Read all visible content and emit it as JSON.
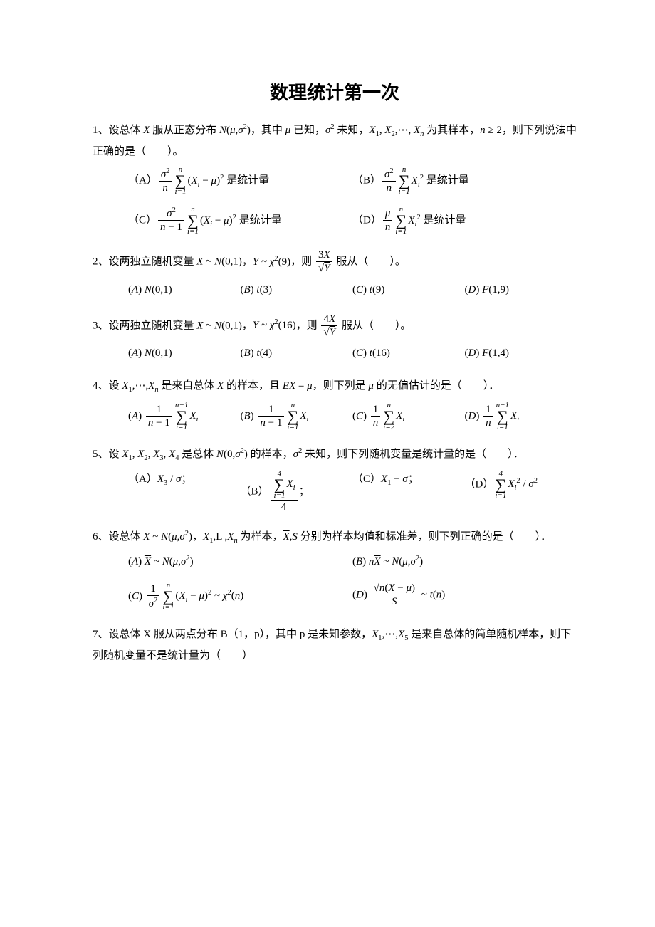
{
  "title": "数理统计第一次",
  "questions": [
    {
      "num": "1、",
      "stem_html": "设总体 <span class='math'>X</span> 服从正态分布 <span class='math'>N<span class='mn'>(</span>μ<span class='mn'>,</span>σ<sup class='mn'>2</sup><span class='mn'>)</span></span>，其中 <span class='math'>μ</span> 已知，<span class='math'>σ<sup class='mn'>2</sup></span> 未知，<span class='math'>X<sub class='mn'>1</sub><span class='mn'>,</span> X<sub class='mn'>2</sub><span class='mn'>,⋯,</span> X<sub>n</sub></span> 为其样本，<span class='math'>n <span class='mn'>≥ 2</span></span>，则下列说法中正确的是（&emsp;&emsp;）。",
      "opts_layout": "row2",
      "options": [
        "（A）<span class='frac'><span class='n'><span class='math'>σ</span><sup>2</sup></span><span class='d'><span class='math'>n</span></span></span><span class='sum'><span class='top'>n</span><span class='sym'>∑</span><span class='bot'>i=1</span></span><span class='math'><span class='mn'>(</span>X<sub>i</sub> <span class='mn'>−</span> μ<span class='mn'>)</span><sup class='mn'>2</sup></span> 是统计量",
        "（B）<span class='frac'><span class='n'><span class='math'>σ</span><sup>2</sup></span><span class='d'><span class='math'>n</span></span></span><span class='sum'><span class='top'>n</span><span class='sym'>∑</span><span class='bot'>i=1</span></span><span class='math'>X<sub>i</sub><sup class='mn'>2</sup></span> 是统计量",
        "（C）<span class='frac'><span class='n'><span class='math'>σ</span><sup>2</sup></span><span class='d'><span class='math'>n</span> − 1</span></span><span class='sum'><span class='top'>n</span><span class='sym'>∑</span><span class='bot'>i=1</span></span><span class='math'><span class='mn'>(</span>X<sub>i</sub> <span class='mn'>−</span> μ<span class='mn'>)</span><sup class='mn'>2</sup></span> 是统计量",
        "（D）<span class='frac'><span class='n'><span class='math'>μ</span></span><span class='d'><span class='math'>n</span></span></span><span class='sum'><span class='top'>n</span><span class='sym'>∑</span><span class='bot'>i=1</span></span><span class='math'>X<sub>i</sub><sup class='mn'>2</sup></span> 是统计量"
      ]
    },
    {
      "num": "2、",
      "stem_html": "设两独立随机变量 <span class='math'>X <span class='mn'>~</span> N<span class='mn'>(0,1)</span></span>，<span class='math'>Y <span class='mn'>~</span> χ<sup class='mn'>2</sup><span class='mn'>(9)</span></span>，则 <span class='frac'><span class='n'>3<span class='math'>X</span></span><span class='d'>√<span class='ov'><span class='math'>Y</span></span></span></span> 服从（&emsp;&emsp;）。",
      "opts_layout": "row4",
      "options": [
        "(<span class='math'>A</span>) <span class='math'>N</span>(0,1)",
        "(<span class='math'>B</span>) <span class='math'>t</span>(3)",
        "(<span class='math'>C</span>) <span class='math'>t</span>(9)",
        "(<span class='math'>D</span>) <span class='math'>F</span>(1,9)"
      ]
    },
    {
      "num": "3、",
      "stem_html": "设两独立随机变量 <span class='math'>X <span class='mn'>~</span> N<span class='mn'>(0,1)</span></span>，<span class='math'>Y <span class='mn'>~</span> χ<sup class='mn'>2</sup><span class='mn'>(16)</span></span>，则 <span class='frac'><span class='n'>4<span class='math'>X</span></span><span class='d'>√<span class='ov'><span class='math'>Y</span></span></span></span> 服从（&emsp;&emsp;）。",
      "opts_layout": "row4",
      "options": [
        "(<span class='math'>A</span>) <span class='math'>N</span>(0,1)",
        "(<span class='math'>B</span>) <span class='math'>t</span>(4)",
        "(<span class='math'>C</span>) <span class='math'>t</span>(16)",
        "(<span class='math'>D</span>) <span class='math'>F</span>(1,4)"
      ]
    },
    {
      "num": "4、",
      "stem_html": "设 <span class='math'>X<sub class='mn'>1</sub><span class='mn'>,⋯,</span>X<sub>n</sub></span> 是来自总体 <span class='math'>X</span> 的样本，且 <span class='math'>EX <span class='mn'>=</span> μ</span>，则下列是 <span class='math'>μ</span> 的无偏估计的是（&emsp;&emsp;）．",
      "opts_layout": "row4",
      "options": [
        "(<span class='math'>A</span>) <span class='frac'><span class='n'>1</span><span class='d'><span class='math'>n</span> − 1</span></span><span class='sum'><span class='top'>n−1</span><span class='sym'>∑</span><span class='bot'>i=1</span></span><span class='math'>X<sub>i</sub></span>",
        "(<span class='math'>B</span>) <span class='frac'><span class='n'>1</span><span class='d'><span class='math'>n</span> − 1</span></span><span class='sum'><span class='top'>n</span><span class='sym'>∑</span><span class='bot'>i=1</span></span><span class='math'>X<sub>i</sub></span>",
        "(<span class='math'>C</span>) <span class='frac'><span class='n'>1</span><span class='d'><span class='math'>n</span></span></span><span class='sum'><span class='top'>n</span><span class='sym'>∑</span><span class='bot'>i=2</span></span><span class='math'>X<sub>i</sub></span>",
        "(<span class='math'>D</span>) <span class='frac'><span class='n'>1</span><span class='d'><span class='math'>n</span></span></span><span class='sum'><span class='top'>n−1</span><span class='sym'>∑</span><span class='bot'>i=1</span></span><span class='math'>X<sub>i</sub></span>"
      ]
    },
    {
      "num": "5、",
      "stem_html": "设 <span class='math'>X<sub class='mn'>1</sub><span class='mn'>,</span> X<sub class='mn'>2</sub><span class='mn'>,</span> X<sub class='mn'>3</sub><span class='mn'>,</span> X<sub class='mn'>4</sub></span> 是总体 <span class='math'>N<span class='mn'>(0,</span>σ<sup class='mn'>2</sup><span class='mn'>)</span></span> 的样本，<span class='math'>σ<sup class='mn'>2</sup></span> 未知，则下列随机变量是统计量的是（&emsp;&emsp;）．",
      "opts_layout": "row4",
      "options": [
        "（A）<span class='math'>X<sub class='mn'>3</sub> <span class='mn'>/</span> σ</span>；",
        "（B）<span class='frac'><span class='n'><span class='sum'><span class='top'>4</span><span class='sym'>∑</span><span class='bot'>i=1</span></span><span class='math'>X<sub>i</sub></span></span><span class='d'>4</span></span>；",
        "（C）<span class='math'>X<sub class='mn'>1</sub> <span class='mn'>−</span> σ</span>；",
        "（D）<span class='sum'><span class='top'>4</span><span class='sym'>∑</span><span class='bot'>i=1</span></span><span class='math'>X<sub>i</sub><sup class='mn'>2</sup> <span class='mn'>/</span> σ<sup class='mn'>2</sup></span>"
      ]
    },
    {
      "num": "6、",
      "stem_html": "设总体 <span class='math'>X <span class='mn'>~</span> N<span class='mn'>(</span>μ<span class='mn'>,</span>σ<sup class='mn'>2</sup><span class='mn'>)</span></span>，<span class='math'>X<sub class='mn'>1</sub><span class='mn'>,L ,</span>X<sub>n</sub></span> 为样本，<span class='math'><span class='ov'>X</span><span class='mn'>,</span>S</span> 分别为样本均值和标准差，则下列正确的是（&emsp;&emsp;）．",
      "opts_layout": "row2",
      "options": [
        "(<span class='math'>A</span>) <span class='math'><span class='ov'>X</span> <span class='mn'>~</span> N<span class='mn'>(</span>μ<span class='mn'>,</span>σ<sup class='mn'>2</sup><span class='mn'>)</span></span>",
        "(<span class='math'>B</span>) <span class='math'>n<span class='ov'>X</span> <span class='mn'>~</span> N<span class='mn'>(</span>μ<span class='mn'>,</span>σ<sup class='mn'>2</sup><span class='mn'>)</span></span>",
        "(<span class='math'>C</span>) <span class='frac'><span class='n'>1</span><span class='d'><span class='math'>σ</span><sup>2</sup></span></span><span class='sum'><span class='top'>n</span><span class='sym'>∑</span><span class='bot'>i=1</span></span><span class='math'><span class='mn'>(</span>X<sub>i</sub> <span class='mn'>−</span> μ<span class='mn'>)</span><sup class='mn'>2</sup> <span class='mn'>~</span> χ<sup class='mn'>2</sup><span class='mn'>(</span>n<span class='mn'>)</span></span>",
        "(<span class='math'>D</span>) <span class='frac'><span class='n'>√<span class='ov'><span class='math'>n</span></span>(<span class='math ov'>X</span> − <span class='math'>μ</span>)</span><span class='d'><span class='math'>S</span></span></span> <span class='math'><span class='mn'>~</span> t<span class='mn'>(</span>n<span class='mn'>)</span></span>"
      ]
    },
    {
      "num": "7、",
      "stem_html": "设总体 X 服从两点分布 B（1，p），其中 p 是未知参数，<span class='math'>X<sub class='mn'>1</sub><span class='mn'>,⋯,</span>X<sub class='mn'>5</sub></span> 是来自总体的简单随机样本，则下列随机变量不是统计量为（&emsp;&emsp;）",
      "opts_layout": "none",
      "options": []
    }
  ]
}
